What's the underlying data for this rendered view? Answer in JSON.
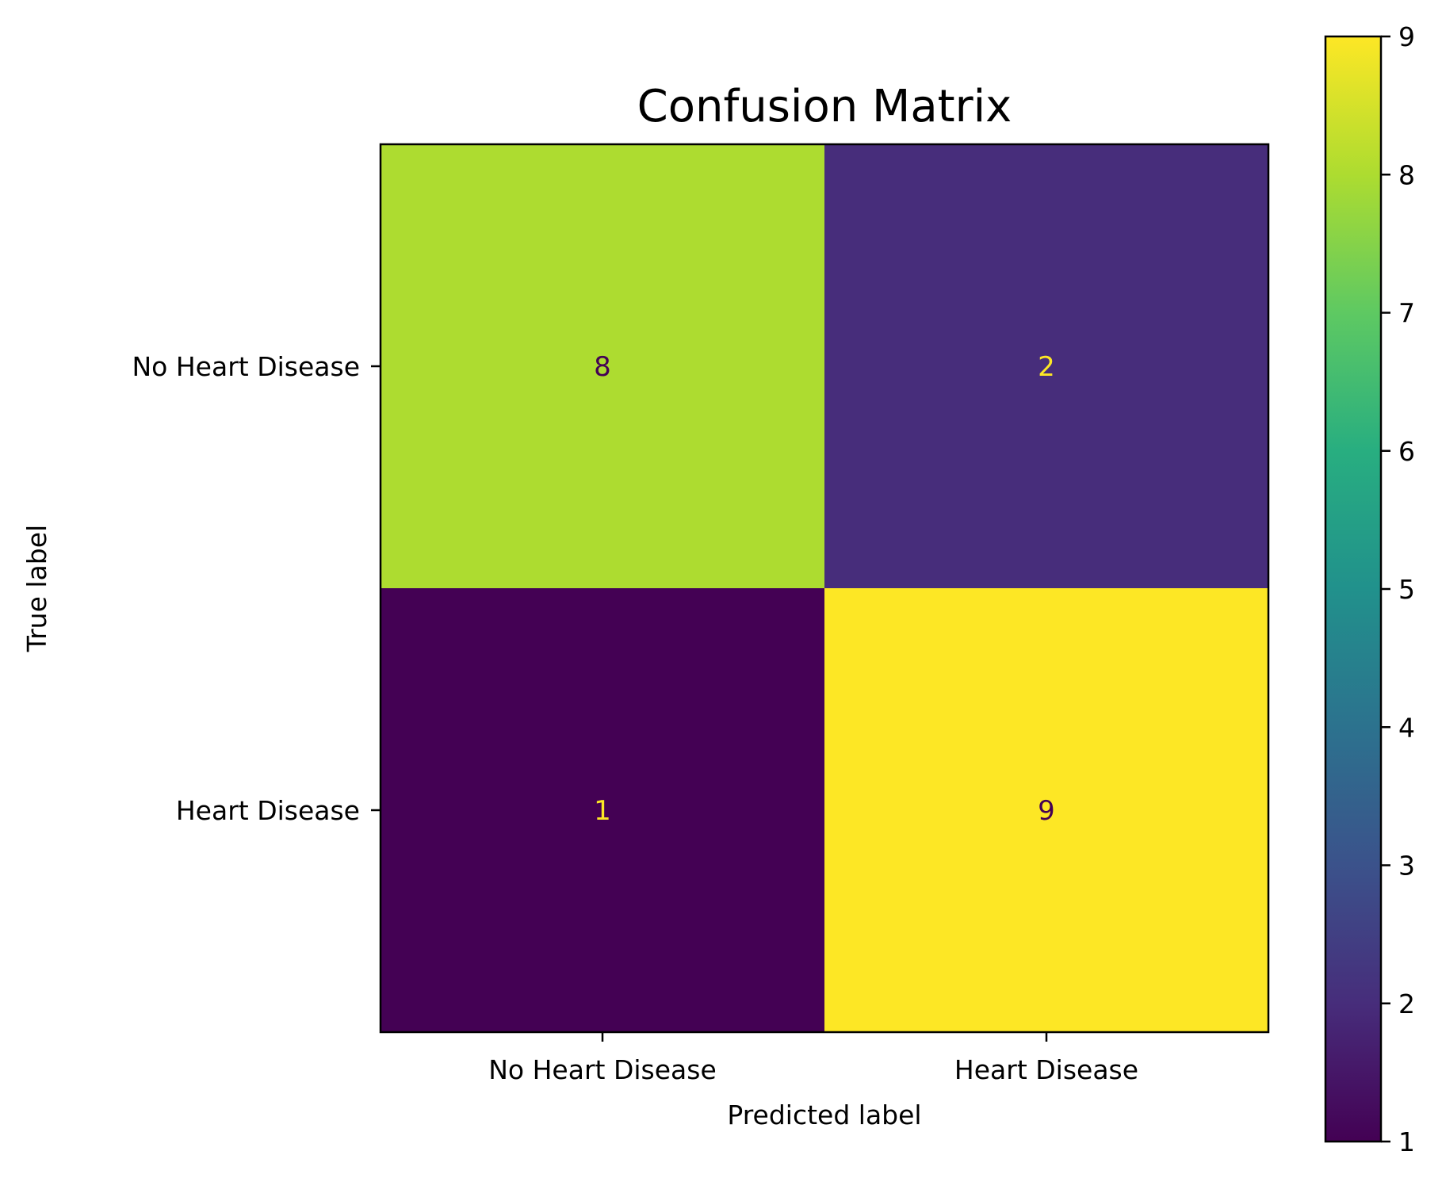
{
  "chart_data": {
    "type": "heatmap",
    "title": "Confusion Matrix",
    "xlabel": "Predicted label",
    "ylabel": "True label",
    "x_categories": [
      "No Heart Disease",
      "Heart Disease"
    ],
    "y_categories": [
      "No Heart Disease",
      "Heart Disease"
    ],
    "values": [
      [
        8,
        2
      ],
      [
        1,
        9
      ]
    ],
    "colormap": "viridis",
    "colorbar": {
      "range": [
        1,
        9
      ],
      "ticks": [
        "1",
        "2",
        "3",
        "4",
        "5",
        "6",
        "7",
        "8",
        "9"
      ]
    },
    "colors": {
      "low": "#440154",
      "high": "#fde725",
      "text_on_dark": "#fde725",
      "text_on_light": "#440154"
    }
  }
}
